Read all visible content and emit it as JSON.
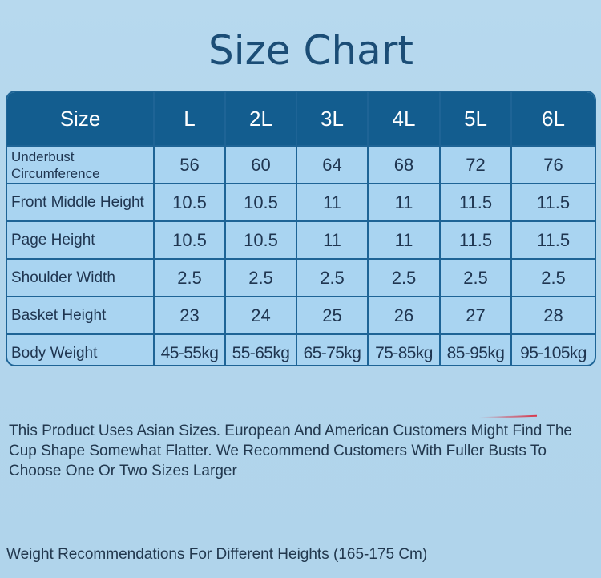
{
  "title": "Size Chart",
  "table": {
    "header_label": "Size",
    "sizes": [
      "L",
      "2L",
      "3L",
      "4L",
      "5L",
      "6L"
    ],
    "rows": [
      {
        "label": "Underbust Circumference",
        "values": [
          "56",
          "60",
          "64",
          "68",
          "72",
          "76"
        ]
      },
      {
        "label": "Front Middle Height",
        "values": [
          "10.5",
          "10.5",
          "11",
          "11",
          "11.5",
          "11.5"
        ]
      },
      {
        "label": "Page Height",
        "values": [
          "10.5",
          "10.5",
          "11",
          "11",
          "11.5",
          "11.5"
        ]
      },
      {
        "label": "Shoulder Width",
        "values": [
          "2.5",
          "2.5",
          "2.5",
          "2.5",
          "2.5",
          "2.5"
        ]
      },
      {
        "label": "Basket Height",
        "values": [
          "23",
          "24",
          "25",
          "26",
          "27",
          "28"
        ]
      },
      {
        "label": "Body Weight",
        "values": [
          "45-55kg",
          "55-65kg",
          "65-75kg",
          "75-85kg",
          "85-95kg",
          "95-105kg"
        ]
      }
    ]
  },
  "notice": "This Product Uses Asian Sizes. European And American Customers Might Find The Cup Shape Somewhat Flatter. We Recommend Customers With Fuller Busts To Choose One Or Two Sizes Larger",
  "weight_note": "Weight Recommendations For Different Heights (165-175 Cm)",
  "colors": {
    "header_bg": "#135d8f",
    "cell_bg": "#a9d4f1",
    "border": "#1e6496",
    "title": "#1b4d76"
  }
}
